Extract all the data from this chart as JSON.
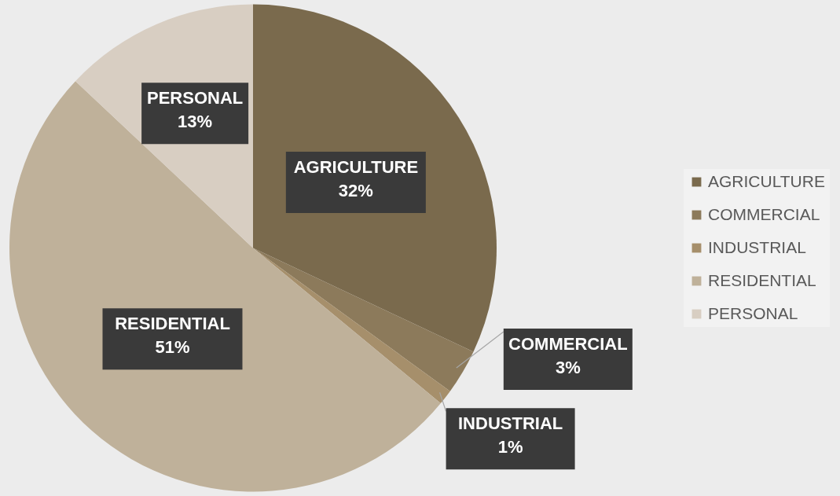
{
  "chart_data": {
    "type": "pie",
    "categories": [
      "AGRICULTURE",
      "COMMERCIAL",
      "INDUSTRIAL",
      "RESIDENTIAL",
      "PERSONAL"
    ],
    "values": [
      32,
      3,
      1,
      51,
      13
    ],
    "colors": [
      "#7a6a4d",
      "#8c7a5b",
      "#a68f6b",
      "#bfb19a",
      "#d8cec2"
    ],
    "value_labels": [
      "32%",
      "3%",
      "1%",
      "51%",
      "13%"
    ],
    "legend": "right"
  }
}
